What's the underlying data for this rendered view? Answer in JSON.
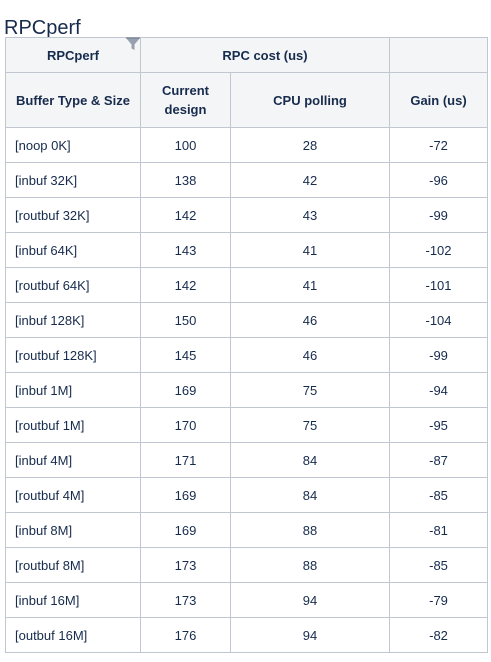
{
  "page": {
    "title": "RPCperf"
  },
  "table": {
    "group_headers": [
      "RPCperf",
      "RPC cost (us)",
      ""
    ],
    "columns": [
      "Buffer Type & Size",
      "Current design",
      "CPU polling",
      "Gain (us)"
    ],
    "rows": [
      {
        "buffer": "[noop 0K]",
        "current": "100",
        "polling": "28",
        "gain": "-72"
      },
      {
        "buffer": "[inbuf 32K]",
        "current": "138",
        "polling": "42",
        "gain": "-96"
      },
      {
        "buffer": "[routbuf 32K]",
        "current": "142",
        "polling": "43",
        "gain": "-99"
      },
      {
        "buffer": "[inbuf 64K]",
        "current": "143",
        "polling": "41",
        "gain": "-102"
      },
      {
        "buffer": "[routbuf 64K]",
        "current": "142",
        "polling": "41",
        "gain": "-101"
      },
      {
        "buffer": "[inbuf 128K]",
        "current": "150",
        "polling": "46",
        "gain": "-104"
      },
      {
        "buffer": "[routbuf 128K]",
        "current": "145",
        "polling": "46",
        "gain": "-99"
      },
      {
        "buffer": "[inbuf 1M]",
        "current": "169",
        "polling": "75",
        "gain": "-94"
      },
      {
        "buffer": "[routbuf 1M]",
        "current": "170",
        "polling": "75",
        "gain": "-95"
      },
      {
        "buffer": "[inbuf 4M]",
        "current": "171",
        "polling": "84",
        "gain": "-87"
      },
      {
        "buffer": "[routbuf 4M]",
        "current": "169",
        "polling": "84",
        "gain": "-85"
      },
      {
        "buffer": "[inbuf 8M]",
        "current": "169",
        "polling": "88",
        "gain": "-81"
      },
      {
        "buffer": "[routbuf 8M]",
        "current": "173",
        "polling": "88",
        "gain": "-85"
      },
      {
        "buffer": "[inbuf 16M]",
        "current": "173",
        "polling": "94",
        "gain": "-79"
      },
      {
        "buffer": "[outbuf 16M]",
        "current": "176",
        "polling": "94",
        "gain": "-82"
      }
    ]
  },
  "icons": {
    "filter": "filter-icon"
  },
  "colors": {
    "header_bg": "#f4f5f7",
    "border": "#c1c7d0",
    "text": "#172b4d",
    "filter_icon": "#97a0af"
  }
}
